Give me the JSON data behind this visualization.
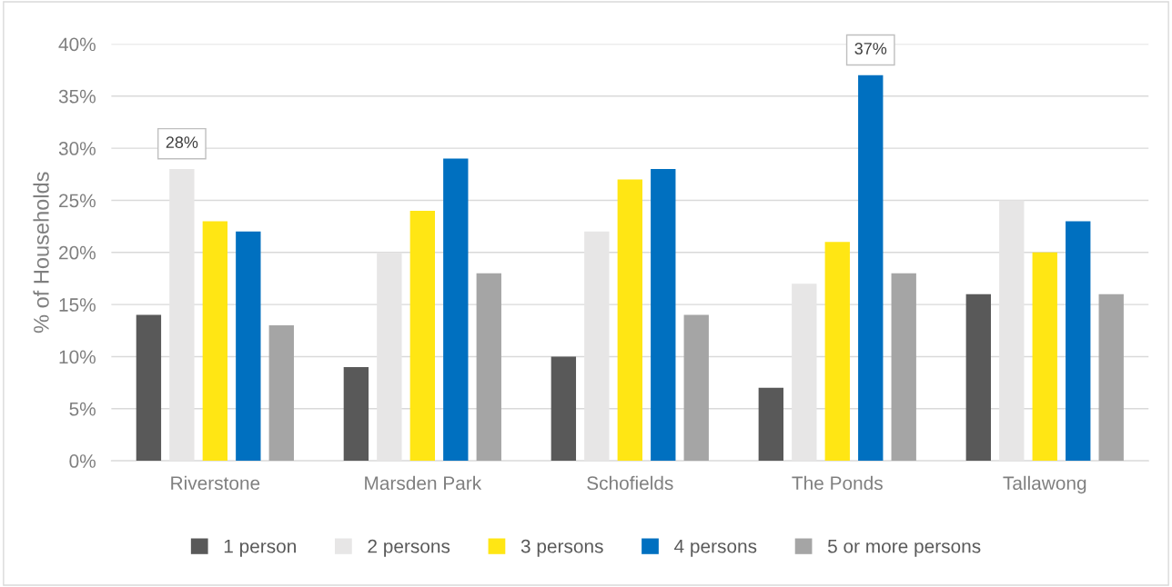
{
  "chart_data": {
    "type": "bar",
    "ylabel": "% of Households",
    "categories": [
      "Riverstone",
      "Marsden Park",
      "Schofields",
      "The Ponds",
      "Tallawong"
    ],
    "series": [
      {
        "name": "1 person",
        "color": "#595959",
        "values": [
          14,
          9,
          10,
          7,
          16
        ]
      },
      {
        "name": "2 persons",
        "color": "#e7e6e6",
        "values": [
          28,
          20,
          22,
          17,
          25
        ],
        "value_labels": [
          "28%",
          null,
          null,
          null,
          null
        ]
      },
      {
        "name": "3 persons",
        "color": "#ffe614",
        "values": [
          23,
          24,
          27,
          21,
          20
        ]
      },
      {
        "name": "4 persons",
        "color": "#0070c0",
        "values": [
          22,
          29,
          28,
          37,
          23
        ],
        "value_labels": [
          null,
          null,
          null,
          "37%",
          null
        ]
      },
      {
        "name": "5 or more persons",
        "color": "#a5a5a5",
        "values": [
          13,
          18,
          14,
          18,
          16
        ]
      }
    ],
    "ylim": [
      0,
      40
    ],
    "yticks": [
      {
        "value": 0,
        "label": "0%"
      },
      {
        "value": 5,
        "label": "5%"
      },
      {
        "value": 10,
        "label": "10%"
      },
      {
        "value": 15,
        "label": "15%"
      },
      {
        "value": 20,
        "label": "20%"
      },
      {
        "value": 25,
        "label": "25%"
      },
      {
        "value": 30,
        "label": "30%"
      },
      {
        "value": 35,
        "label": "35%"
      },
      {
        "value": 40,
        "label": "40%"
      }
    ],
    "grid": "y",
    "legend": "bottom"
  }
}
